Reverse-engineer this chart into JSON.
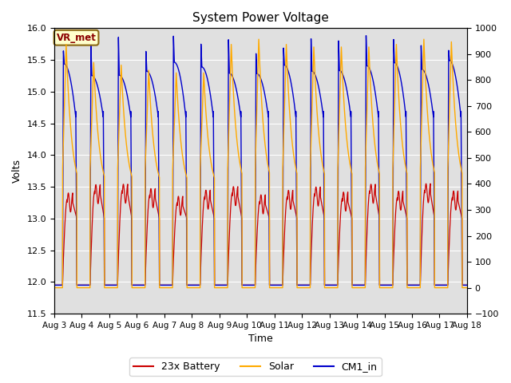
{
  "title": "System Power Voltage",
  "xlabel": "Time",
  "ylabel_left": "Volts",
  "ylim_left": [
    11.5,
    16.0
  ],
  "ylim_right": [
    -100,
    1000
  ],
  "yticks_left": [
    11.5,
    12.0,
    12.5,
    13.0,
    13.5,
    14.0,
    14.5,
    15.0,
    15.5,
    16.0
  ],
  "yticks_right": [
    -100,
    0,
    100,
    200,
    300,
    400,
    500,
    600,
    700,
    800,
    900,
    1000
  ],
  "xtick_labels": [
    "Aug 3",
    "Aug 4",
    "Aug 5",
    "Aug 6",
    "Aug 7",
    "Aug 8",
    "Aug 9",
    "Aug 10",
    "Aug 11",
    "Aug 12",
    "Aug 13",
    "Aug 14",
    "Aug 15",
    "Aug 16",
    "Aug 17",
    "Aug 18"
  ],
  "vr_met_label": "VR_met",
  "legend_labels": [
    "23x Battery",
    "Solar",
    "CM1_in"
  ],
  "battery_color": "#cc0000",
  "solar_color": "#ffaa00",
  "cm1_color": "#0000cc",
  "background_color": "#ffffff",
  "plot_bg_color": "#e0e0e0",
  "grid_color": "#ffffff",
  "n_days": 15,
  "points_per_day": 500
}
